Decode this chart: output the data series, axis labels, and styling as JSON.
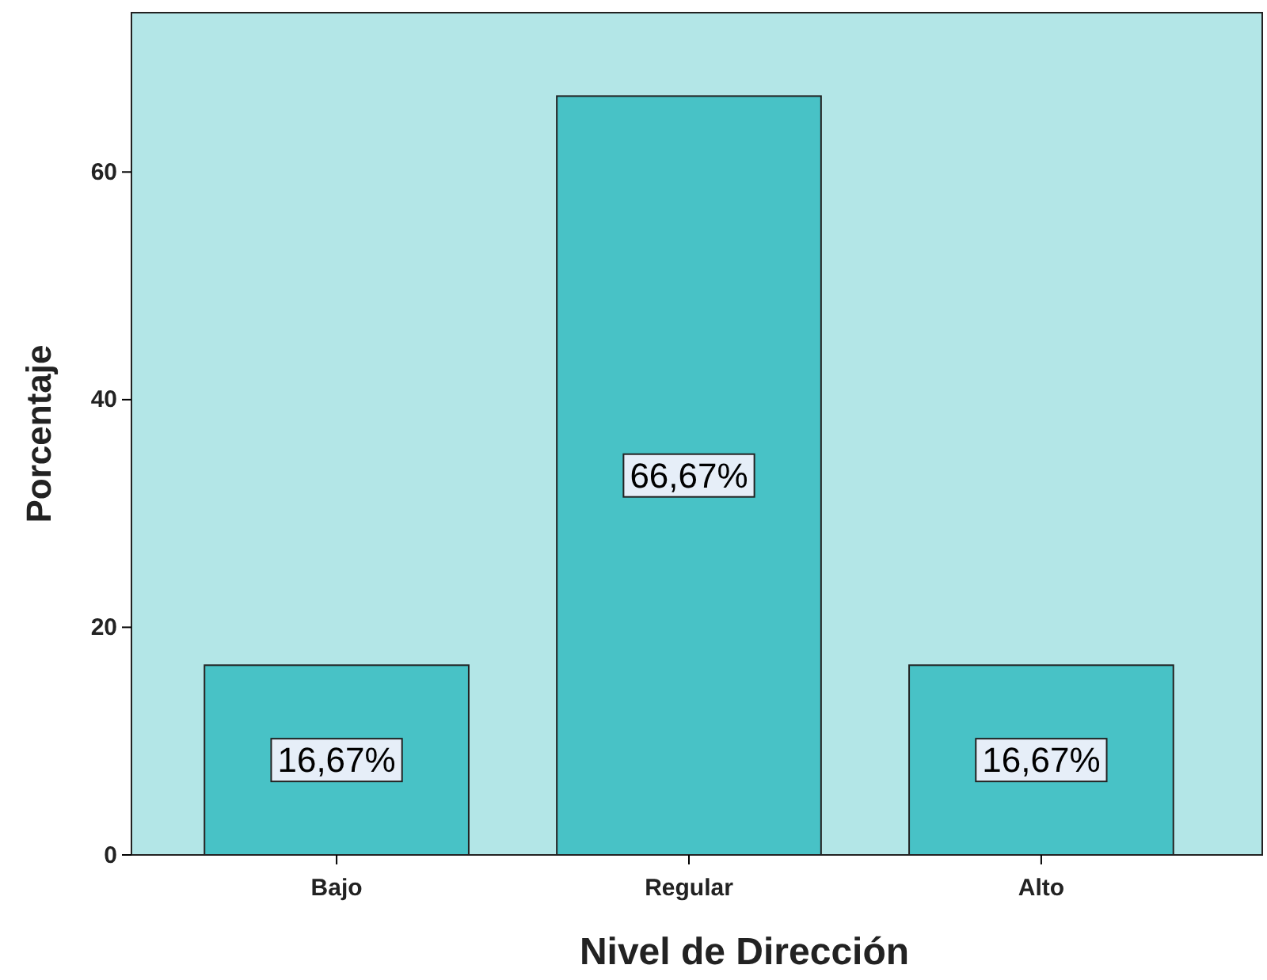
{
  "chart_data": {
    "type": "bar",
    "xlabel": "Nivel de Dirección",
    "ylabel": "Porcentaje",
    "categories": [
      "Bajo",
      "Regular",
      "Alto"
    ],
    "values": [
      16.67,
      66.67,
      16.67
    ],
    "value_labels": [
      "16,67%",
      "66,67%",
      "16,67%"
    ],
    "color": "#48c2c6",
    "ylim": [
      0,
      74
    ],
    "yticks": [
      0,
      20,
      40,
      60
    ],
    "grid": false
  }
}
